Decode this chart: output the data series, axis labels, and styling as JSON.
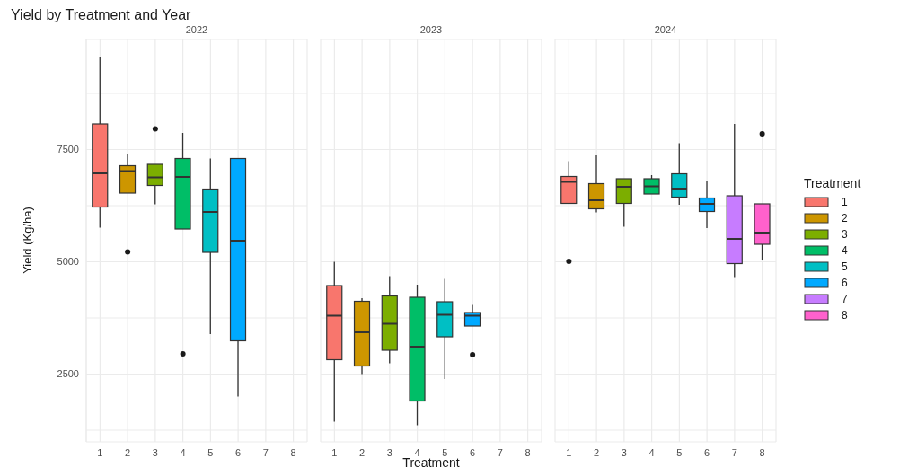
{
  "chart_data": [
    {
      "type": "box",
      "title": "Yield by Treatment and Year",
      "subtitle": "2022",
      "ylabel": "Yield (Kg/ha)",
      "categories": [
        "1",
        "2",
        "3",
        "4",
        "5",
        "6",
        "7",
        "8"
      ],
      "series": [
        {
          "color": "#f8766d",
          "boxes": [
            {
              "low": 5760,
              "q1": 6220,
              "median": 6970,
              "q3": 8070,
              "high": 9560
            },
            null,
            null,
            null,
            null,
            null,
            null,
            null
          ]
        },
        {
          "color": "#cd9600",
          "boxes": [
            null,
            {
              "low": 6530,
              "q1": 6530,
              "median": 7020,
              "q3": 7140,
              "high": 7400,
              "outliers": [
                5220
              ]
            },
            null,
            null,
            null,
            null,
            null,
            null
          ]
        },
        {
          "color": "#7cae00",
          "boxes": [
            null,
            null,
            {
              "low": 6280,
              "q1": 6700,
              "median": 6880,
              "q3": 7170,
              "high": 7170,
              "outliers": [
                7960
              ]
            },
            null,
            null,
            null,
            null,
            null
          ]
        },
        {
          "color": "#00be67",
          "boxes": [
            null,
            null,
            null,
            {
              "low": 5730,
              "q1": 5730,
              "median": 6890,
              "q3": 7300,
              "high": 7870,
              "outliers": [
                2950
              ]
            },
            null,
            null,
            null,
            null
          ]
        },
        {
          "color": "#00bfc4",
          "boxes": [
            null,
            null,
            null,
            null,
            {
              "low": 3390,
              "q1": 5210,
              "median": 6110,
              "q3": 6620,
              "high": 7300
            },
            null,
            null,
            null
          ]
        },
        {
          "color": "#00a9ff",
          "boxes": [
            null,
            null,
            null,
            null,
            null,
            {
              "low": 2000,
              "q1": 3240,
              "median": 5470,
              "q3": 7300,
              "high": 7300
            },
            null,
            null
          ]
        }
      ],
      "ylim": [
        990,
        9970
      ],
      "yticks": [
        {
          "value": 1250,
          "label": null
        },
        2500,
        {
          "value": 3750,
          "label": null
        },
        5000,
        {
          "value": 6250,
          "label": null
        },
        7500,
        {
          "value": 8750,
          "label": null
        }
      ],
      "grid": true
    },
    {
      "type": "box",
      "subtitle": "2023",
      "xlabel": "Treatment",
      "categories": [
        "1",
        "2",
        "3",
        "4",
        "5",
        "6",
        "7",
        "8"
      ],
      "series": [
        {
          "color": "#f8766d",
          "boxes": [
            {
              "low": 1440,
              "q1": 2820,
              "median": 3800,
              "q3": 4470,
              "high": 5000
            },
            null,
            null,
            null,
            null,
            null,
            null,
            null
          ]
        },
        {
          "color": "#cd9600",
          "boxes": [
            null,
            {
              "low": 2500,
              "q1": 2680,
              "median": 3430,
              "q3": 4120,
              "high": 4190
            },
            null,
            null,
            null,
            null,
            null,
            null
          ]
        },
        {
          "color": "#7cae00",
          "boxes": [
            null,
            null,
            {
              "low": 2740,
              "q1": 3030,
              "median": 3620,
              "q3": 4240,
              "high": 4680
            },
            null,
            null,
            null,
            null,
            null
          ]
        },
        {
          "color": "#00be67",
          "boxes": [
            null,
            null,
            null,
            {
              "low": 1360,
              "q1": 1900,
              "median": 3110,
              "q3": 4210,
              "high": 4490
            },
            null,
            null,
            null,
            null
          ]
        },
        {
          "color": "#00bfc4",
          "boxes": [
            null,
            null,
            null,
            null,
            {
              "low": 2390,
              "q1": 3330,
              "median": 3820,
              "q3": 4110,
              "high": 4620
            },
            null,
            null,
            null
          ]
        },
        {
          "color": "#00a9ff",
          "boxes": [
            null,
            null,
            null,
            null,
            null,
            {
              "low": 3570,
              "q1": 3570,
              "median": 3800,
              "q3": 3870,
              "high": 4040,
              "outliers": [
                2930
              ]
            },
            null,
            null
          ]
        }
      ],
      "ylim": [
        990,
        9970
      ],
      "yticks": [
        {
          "value": 1250,
          "label": null
        },
        2500,
        {
          "value": 3750,
          "label": null
        },
        5000,
        {
          "value": 6250,
          "label": null
        },
        7500,
        {
          "value": 8750,
          "label": null
        }
      ],
      "grid": true,
      "tick_labels": "x"
    },
    {
      "type": "box",
      "subtitle": "2024",
      "legend_title": "Treatment",
      "legend": "right",
      "categories": [
        "1",
        "2",
        "3",
        "4",
        "5",
        "6",
        "7",
        "8"
      ],
      "series": [
        {
          "name": "1",
          "color": "#f8766d",
          "boxes": [
            {
              "low": 6300,
              "q1": 6300,
              "median": 6780,
              "q3": 6900,
              "high": 7240,
              "outliers": [
                5010
              ]
            },
            null,
            null,
            null,
            null,
            null,
            null,
            null
          ]
        },
        {
          "name": "2",
          "color": "#cd9600",
          "boxes": [
            null,
            {
              "low": 6100,
              "q1": 6180,
              "median": 6370,
              "q3": 6740,
              "high": 7370
            },
            null,
            null,
            null,
            null,
            null,
            null
          ]
        },
        {
          "name": "3",
          "color": "#7cae00",
          "boxes": [
            null,
            null,
            {
              "low": 5780,
              "q1": 6300,
              "median": 6670,
              "q3": 6850,
              "high": 6850
            },
            null,
            null,
            null,
            null,
            null
          ]
        },
        {
          "name": "4",
          "color": "#00be67",
          "boxes": [
            null,
            null,
            null,
            {
              "low": 6510,
              "q1": 6510,
              "median": 6680,
              "q3": 6850,
              "high": 6930
            },
            null,
            null,
            null,
            null
          ]
        },
        {
          "name": "5",
          "color": "#00bfc4",
          "boxes": [
            null,
            null,
            null,
            null,
            {
              "low": 6270,
              "q1": 6440,
              "median": 6630,
              "q3": 6960,
              "high": 7640
            },
            null,
            null,
            null
          ]
        },
        {
          "name": "6",
          "color": "#00a9ff",
          "boxes": [
            null,
            null,
            null,
            null,
            null,
            {
              "low": 5750,
              "q1": 6120,
              "median": 6290,
              "q3": 6420,
              "high": 6790
            },
            null,
            null
          ]
        },
        {
          "name": "7",
          "color": "#c77cff",
          "boxes": [
            null,
            null,
            null,
            null,
            null,
            null,
            {
              "low": 4660,
              "q1": 4960,
              "median": 5510,
              "q3": 6470,
              "high": 8070
            },
            null
          ]
        },
        {
          "name": "8",
          "color": "#ff61cc",
          "boxes": [
            null,
            null,
            null,
            null,
            null,
            null,
            null,
            {
              "low": 5030,
              "q1": 5390,
              "median": 5650,
              "q3": 6290,
              "high": 6290,
              "outliers": [
                7850
              ]
            }
          ]
        }
      ],
      "ylim": [
        990,
        9970
      ],
      "yticks": [
        {
          "value": 1250,
          "label": null
        },
        2500,
        {
          "value": 3750,
          "label": null
        },
        5000,
        {
          "value": 6250,
          "label": null
        },
        7500,
        {
          "value": 8750,
          "label": null
        }
      ],
      "grid": true,
      "tick_labels": "x"
    }
  ]
}
